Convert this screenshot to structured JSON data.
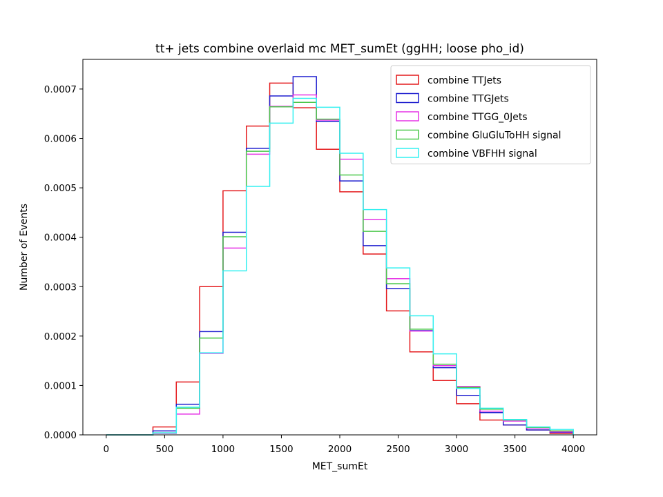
{
  "chart_data": {
    "type": "step-histogram",
    "title": "tt+ jets combine overlaid mc MET_sumEt (ggHH; loose pho_id)",
    "xlabel": "MET_sumEt",
    "ylabel": "Number of Events",
    "xlim": [
      -200,
      4200
    ],
    "ylim": [
      0,
      0.00076
    ],
    "xticks": [
      0,
      500,
      1000,
      1500,
      2000,
      2500,
      3000,
      3500,
      4000
    ],
    "xtick_labels": [
      "0",
      "500",
      "1000",
      "1500",
      "2000",
      "2500",
      "3000",
      "3500",
      "4000"
    ],
    "yticks": [
      0,
      0.0001,
      0.0002,
      0.0003,
      0.0004,
      0.0005,
      0.0006,
      0.0007
    ],
    "ytick_labels": [
      "0.0000",
      "0.0001",
      "0.0002",
      "0.0003",
      "0.0004",
      "0.0005",
      "0.0006",
      "0.0007"
    ],
    "bin_edges": [
      0,
      200,
      400,
      600,
      800,
      1000,
      1200,
      1400,
      1600,
      1800,
      2000,
      2200,
      2400,
      2600,
      2800,
      3000,
      3200,
      3400,
      3600,
      3800,
      4000
    ],
    "legend_position": "upper right",
    "series": [
      {
        "name": "combine TTJets",
        "color": "#e41a1c",
        "values": [
          0.0,
          0.0,
          1.6e-05,
          0.000107,
          0.0003,
          0.000494,
          0.000625,
          0.000712,
          0.000662,
          0.000578,
          0.000492,
          0.000366,
          0.000251,
          0.000168,
          0.00011,
          6.3e-05,
          3e-05,
          2e-05,
          1e-05,
          3e-06
        ]
      },
      {
        "name": "combine TTGJets",
        "color": "#1f1fcf",
        "values": [
          0.0,
          0.0,
          8e-06,
          6.2e-05,
          0.000209,
          0.00041,
          0.00058,
          0.000686,
          0.000725,
          0.000634,
          0.000514,
          0.000383,
          0.000296,
          0.000211,
          0.000136,
          8e-05,
          4.5e-05,
          2e-05,
          1e-05,
          5e-06
        ]
      },
      {
        "name": "combine TTGG_0Jets",
        "color": "#e534e5",
        "values": [
          0.0,
          0.0,
          3e-06,
          4.2e-05,
          0.000165,
          0.000378,
          0.000568,
          0.000665,
          0.000688,
          0.000637,
          0.000558,
          0.000436,
          0.000316,
          0.00021,
          0.00014,
          9.8e-05,
          4.8e-05,
          2.8e-05,
          1.4e-05,
          6e-06
        ]
      },
      {
        "name": "combine GluGluToHH signal",
        "color": "#4cc84c",
        "values": [
          0.0,
          0.0,
          4e-06,
          5.4e-05,
          0.000196,
          0.000401,
          0.000574,
          0.000664,
          0.000673,
          0.000639,
          0.000526,
          0.000412,
          0.000306,
          0.000214,
          0.000143,
          9.6e-05,
          5.2e-05,
          3e-05,
          1.5e-05,
          8e-06
        ]
      },
      {
        "name": "combine VBFHH signal",
        "color": "#33f0f0",
        "values": [
          0.0,
          0.0,
          4e-06,
          5.6e-05,
          0.000166,
          0.000332,
          0.000503,
          0.000631,
          0.000681,
          0.000663,
          0.00057,
          0.000456,
          0.000338,
          0.000241,
          0.000164,
          9.4e-05,
          5.4e-05,
          3.1e-05,
          1.6e-05,
          1.1e-05
        ]
      }
    ]
  }
}
